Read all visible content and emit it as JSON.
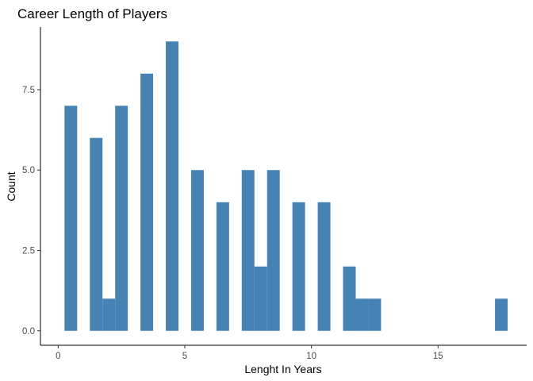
{
  "chart_data": {
    "type": "bar",
    "title": "Career Length of Players",
    "xlabel": "Lenght In Years",
    "ylabel": "Count",
    "bar_color": "#4682B4",
    "grid": false,
    "xlim": [
      -0.7,
      18.5
    ],
    "ylim": [
      -0.45,
      9.45
    ],
    "x_ticks": [
      0,
      5,
      10,
      15
    ],
    "y_ticks": [
      0,
      2.5,
      5,
      7.5
    ],
    "x_tick_labels": [
      "0",
      "5",
      "10",
      "15"
    ],
    "y_tick_labels": [
      "0.0",
      "2.5",
      "5.0",
      "7.5"
    ],
    "bins": [
      {
        "x0": 0.25,
        "x1": 0.75,
        "count": 7
      },
      {
        "x0": 1.25,
        "x1": 1.75,
        "count": 6
      },
      {
        "x0": 1.75,
        "x1": 2.25,
        "count": 1
      },
      {
        "x0": 2.25,
        "x1": 2.75,
        "count": 7
      },
      {
        "x0": 3.25,
        "x1": 3.75,
        "count": 8
      },
      {
        "x0": 4.25,
        "x1": 4.75,
        "count": 9
      },
      {
        "x0": 5.25,
        "x1": 5.75,
        "count": 5
      },
      {
        "x0": 6.25,
        "x1": 6.75,
        "count": 4
      },
      {
        "x0": 7.25,
        "x1": 7.75,
        "count": 5
      },
      {
        "x0": 7.75,
        "x1": 8.25,
        "count": 2
      },
      {
        "x0": 8.25,
        "x1": 8.75,
        "count": 5
      },
      {
        "x0": 9.25,
        "x1": 9.75,
        "count": 4
      },
      {
        "x0": 10.25,
        "x1": 10.75,
        "count": 4
      },
      {
        "x0": 11.25,
        "x1": 11.75,
        "count": 2
      },
      {
        "x0": 11.75,
        "x1": 12.25,
        "count": 1
      },
      {
        "x0": 12.25,
        "x1": 12.75,
        "count": 1
      },
      {
        "x0": 17.25,
        "x1": 17.75,
        "count": 1
      }
    ]
  }
}
